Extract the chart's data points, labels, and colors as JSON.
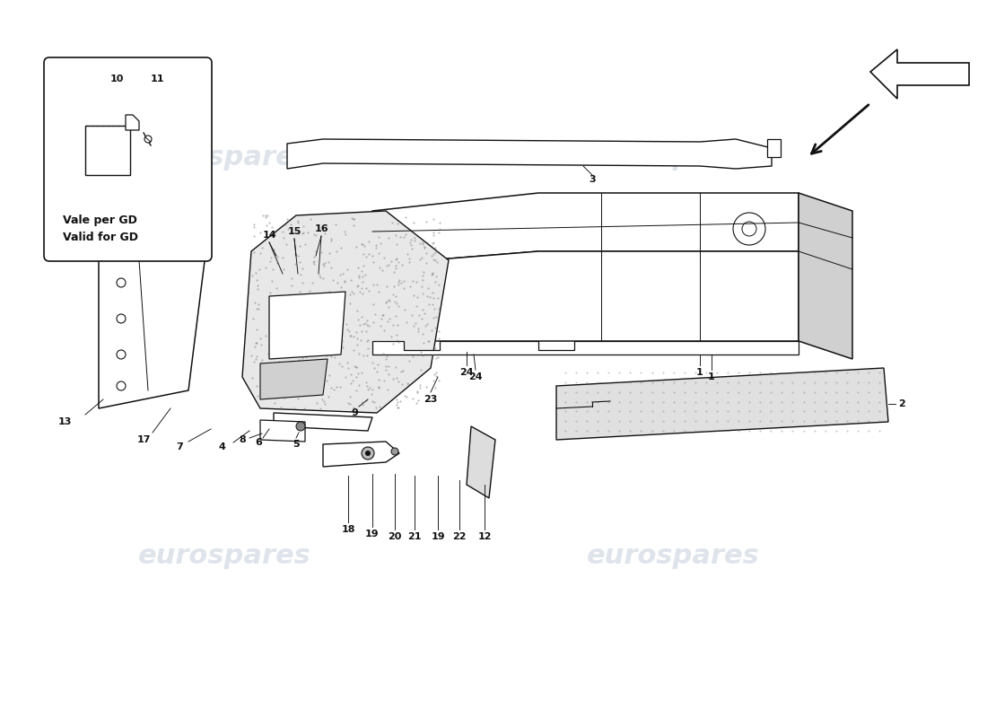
{
  "background_color": "#ffffff",
  "watermark_text": "eurospares",
  "watermark_color": "#c5cedc",
  "black": "#111111",
  "gray": "#888888",
  "light_gray": "#d0d0d0",
  "stipple_gray": "#aaaaaa",
  "fig_width": 11.0,
  "fig_height": 8.0,
  "dpi": 100,
  "inset_text1": "Vale per GD",
  "inset_text2": "Valid for GD"
}
